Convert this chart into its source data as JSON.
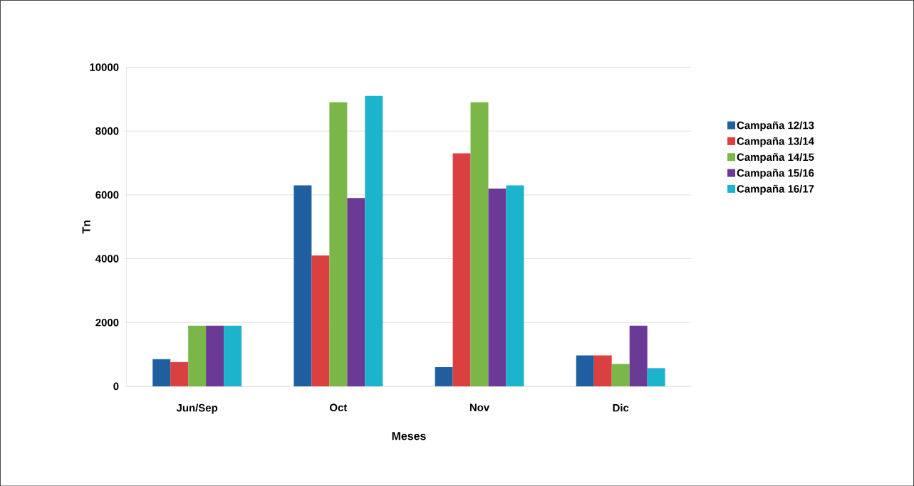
{
  "chart_data": {
    "type": "bar",
    "xlabel": "Meses",
    "ylabel": "Tn",
    "categories": [
      "Jun/Sep",
      "Oct",
      "Nov",
      "Dic"
    ],
    "series": [
      {
        "name": "Campaña 12/13",
        "color": "#1f5fa0",
        "values": [
          850,
          6300,
          600,
          970
        ]
      },
      {
        "name": "Campaña 13/14",
        "color": "#d9403f",
        "values": [
          760,
          4100,
          7300,
          970
        ]
      },
      {
        "name": "Campaña 14/15",
        "color": "#7ab648",
        "values": [
          1900,
          8900,
          8900,
          700
        ]
      },
      {
        "name": "Campaña 15/16",
        "color": "#6a3a96",
        "values": [
          1900,
          5900,
          6200,
          1900
        ]
      },
      {
        "name": "Campaña 16/17",
        "color": "#1cb3cc",
        "values": [
          1900,
          9100,
          6300,
          570
        ]
      }
    ],
    "ylim": [
      0,
      10000
    ],
    "yticks": [
      0,
      2000,
      4000,
      6000,
      8000,
      10000
    ],
    "grid": "y",
    "legend": "right"
  }
}
